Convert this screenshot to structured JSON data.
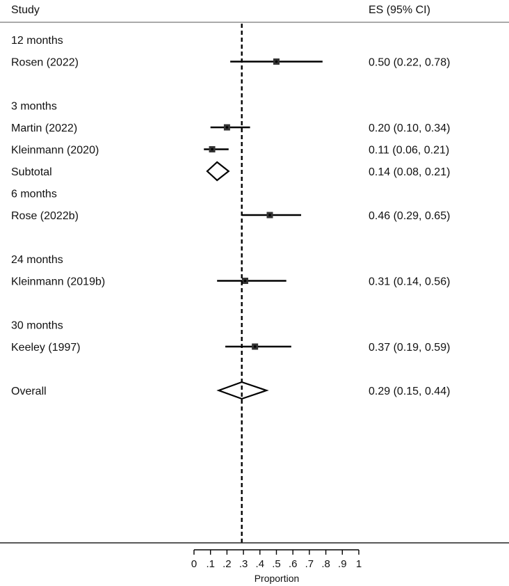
{
  "chart_data": {
    "type": "forest",
    "header": {
      "study": "Study",
      "es": "ES (95% CI)"
    },
    "xlabel": "Proportion",
    "xlim": [
      0,
      1
    ],
    "xticks": [
      0,
      0.1,
      0.2,
      0.3,
      0.4,
      0.5,
      0.6,
      0.7,
      0.8,
      0.9,
      1
    ],
    "xtick_labels": [
      "0",
      ".1",
      ".2",
      ".3",
      ".4",
      ".5",
      ".6",
      ".7",
      ".8",
      ".9",
      "1"
    ],
    "reference_line": 0.29,
    "rows": [
      {
        "kind": "group",
        "label": "12 months"
      },
      {
        "kind": "study",
        "label": "Rosen (2022)",
        "es": 0.5,
        "lo": 0.22,
        "hi": 0.78,
        "text": "0.50 (0.22, 0.78)"
      },
      {
        "kind": "gap"
      },
      {
        "kind": "group",
        "label": "3 months"
      },
      {
        "kind": "study",
        "label": "Martin (2022)",
        "es": 0.2,
        "lo": 0.1,
        "hi": 0.34,
        "text": "0.20 (0.10, 0.34)"
      },
      {
        "kind": "study",
        "label": "Kleinmann (2020)",
        "es": 0.11,
        "lo": 0.06,
        "hi": 0.21,
        "text": "0.11 (0.06, 0.21)"
      },
      {
        "kind": "subtotal",
        "label": "Subtotal",
        "es": 0.14,
        "lo": 0.08,
        "hi": 0.21,
        "text": "0.14 (0.08, 0.21)"
      },
      {
        "kind": "group",
        "label": "6 months"
      },
      {
        "kind": "study",
        "label": "Rose (2022b)",
        "es": 0.46,
        "lo": 0.29,
        "hi": 0.65,
        "text": "0.46 (0.29, 0.65)"
      },
      {
        "kind": "gap"
      },
      {
        "kind": "group",
        "label": "24 months"
      },
      {
        "kind": "study",
        "label": "Kleinmann (2019b)",
        "es": 0.31,
        "lo": 0.14,
        "hi": 0.56,
        "text": "0.31 (0.14, 0.56)"
      },
      {
        "kind": "gap"
      },
      {
        "kind": "group",
        "label": "30 months"
      },
      {
        "kind": "study",
        "label": "Keeley (1997)",
        "es": 0.37,
        "lo": 0.19,
        "hi": 0.59,
        "text": "0.37 (0.19, 0.59)"
      },
      {
        "kind": "gap"
      },
      {
        "kind": "overall",
        "label": "Overall",
        "es": 0.29,
        "lo": 0.15,
        "hi": 0.44,
        "text": "0.29 (0.15, 0.44)"
      }
    ]
  }
}
